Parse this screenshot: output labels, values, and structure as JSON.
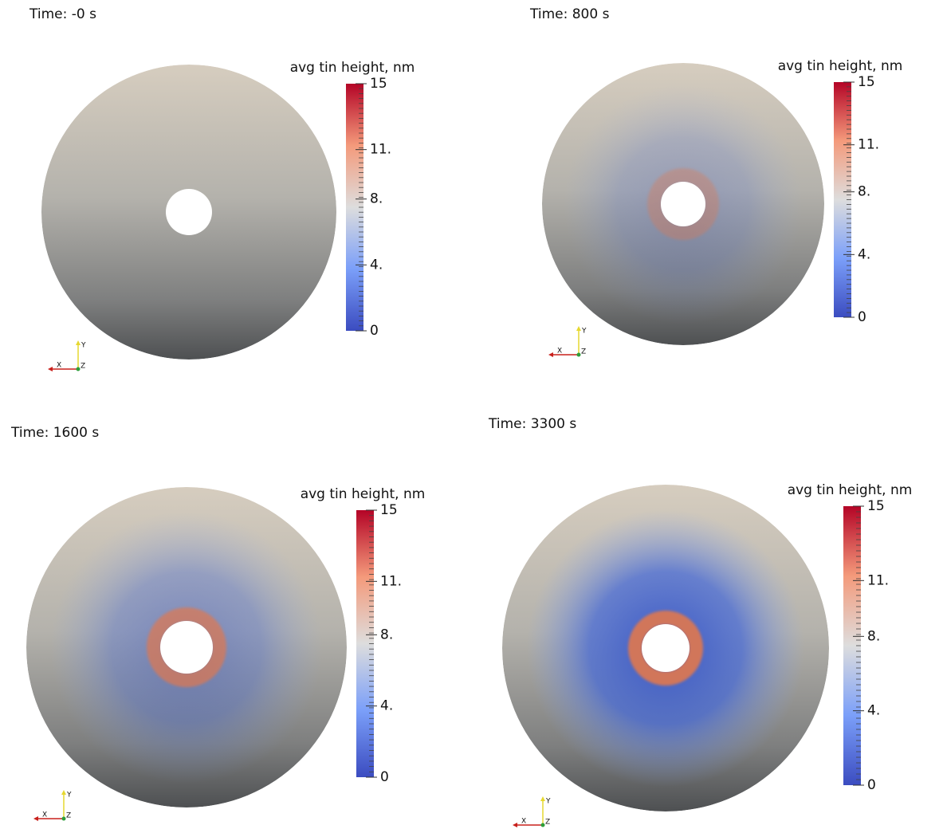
{
  "panels": [
    {
      "time": "Time: -0 s",
      "colorbar_title": "avg tin height, nm"
    },
    {
      "time": "Time: 800 s",
      "colorbar_title": "avg tin height, nm"
    },
    {
      "time": "Time: 1600 s",
      "colorbar_title": "avg tin height, nm"
    },
    {
      "time": "Time: 3300 s",
      "colorbar_title": "avg tin height, nm"
    }
  ],
  "colorbar": {
    "range": [
      0,
      15
    ],
    "ticks": [
      {
        "value": 15,
        "label": "15"
      },
      {
        "value": 11,
        "label": "11."
      },
      {
        "value": 8,
        "label": "8."
      },
      {
        "value": 4,
        "label": "4."
      },
      {
        "value": 0,
        "label": "0"
      }
    ]
  },
  "axes_labels": [
    "X",
    "Y",
    "Z"
  ]
}
